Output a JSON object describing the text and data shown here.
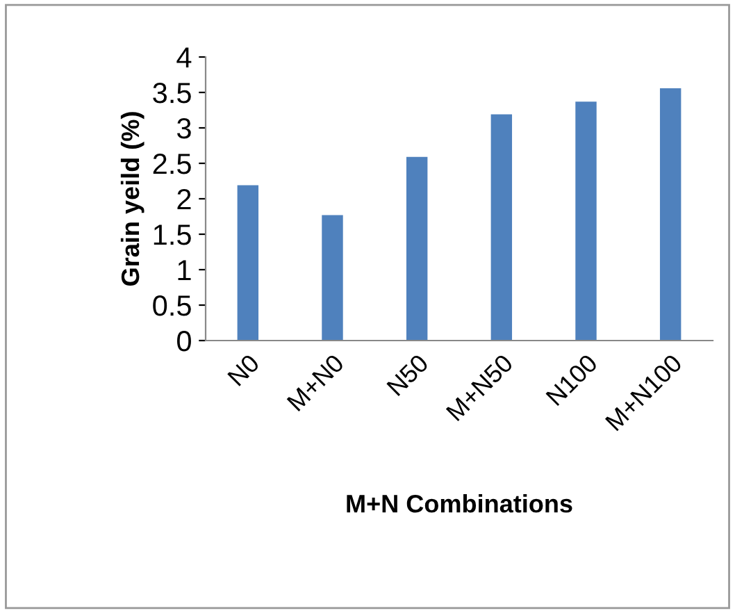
{
  "chart_data": {
    "type": "bar",
    "xlabel": "M+N Combinations",
    "ylabel": "Grain yeild (%)",
    "categories": [
      "N0",
      "M+N0",
      "N50",
      "M+N50",
      "N100",
      "M+N100"
    ],
    "values": [
      2.19,
      1.77,
      2.59,
      3.19,
      3.37,
      3.56
    ],
    "color": "#4f81bd",
    "ylim": [
      0,
      4
    ],
    "yticks": [
      0,
      0.5,
      1,
      1.5,
      2,
      2.5,
      3,
      3.5,
      4
    ],
    "grid": false,
    "legend": false
  }
}
